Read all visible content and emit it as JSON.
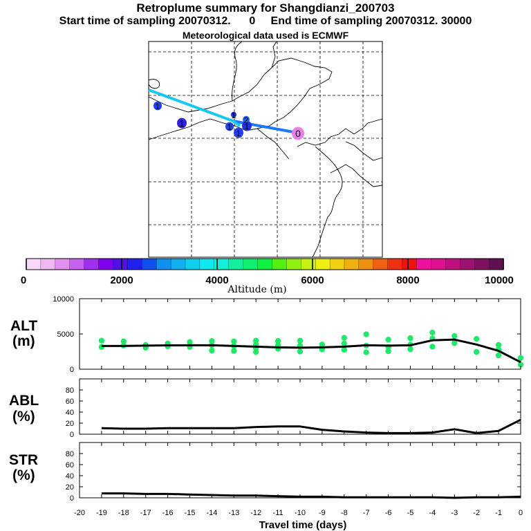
{
  "header": {
    "title": "Retroplume summary for Shangdianzi_200703",
    "subtitle": "Start time of sampling 20070312.      0     End time of sampling 20070312. 30000",
    "met_note": "Meteorological data used is ECMWF"
  },
  "colors": {
    "line_light": "#19c8f0",
    "line_dark": "#1e78ff",
    "scatter": "#22e86a",
    "median_line": "#000000"
  },
  "colorbar": {
    "label": "Altitude (m)",
    "ticks": [
      "0",
      "2000",
      "4000",
      "6000",
      "8000",
      "10000"
    ],
    "colors": [
      "#f8d8f8",
      "#f0b8f0",
      "#e090f0",
      "#c860f0",
      "#a030f0",
      "#8000f0",
      "#5010e8",
      "#2020f0",
      "#1050f0",
      "#1090f0",
      "#10b0f0",
      "#10d0f0",
      "#10e8f0",
      "#10f0d8",
      "#10f0a0",
      "#10f070",
      "#10f040",
      "#50f010",
      "#90f010",
      "#c8f010",
      "#f0f010",
      "#f0d010",
      "#f0b010",
      "#f09010",
      "#f06010",
      "#f03010",
      "#f01010",
      "#f010a0",
      "#e01090",
      "#c01080",
      "#a01070",
      "#801060",
      "#601050"
    ]
  },
  "map": {
    "markers": [
      {
        "label": "0",
        "color": "#e880e8"
      },
      {
        "label": "1",
        "color": "#2040f0"
      },
      {
        "label": "1",
        "color": "#2040f0"
      },
      {
        "label": "1",
        "color": "#2030e0"
      },
      {
        "label": "1",
        "color": "#3020e0"
      },
      {
        "label": "1",
        "color": "#2040f0"
      },
      {
        "label": "1",
        "color": "#2030e0"
      },
      {
        "label": "2",
        "color": "#1e60f0"
      }
    ]
  },
  "panels": {
    "alt": {
      "label_line1": "ALT",
      "label_line2": "(m)",
      "yticks": [
        "10000",
        "5000",
        "0"
      ]
    },
    "abl": {
      "label_line1": "ABL",
      "label_line2": "(%)",
      "yticks": [
        "80",
        "60",
        "40",
        "20",
        "0"
      ]
    },
    "str": {
      "label_line1": "STR",
      "label_line2": "(%)",
      "yticks": [
        "80",
        "60",
        "40",
        "20",
        "0"
      ]
    }
  },
  "xaxis": {
    "label": "Travel time (days)",
    "ticks": [
      "-20",
      "-19",
      "-18",
      "-17",
      "-16",
      "-15",
      "-14",
      "-13",
      "-12",
      "-11",
      "-10",
      "-9",
      "-8",
      "-7",
      "-6",
      "-5",
      "-4",
      "-3",
      "-2",
      "-1",
      "0"
    ]
  },
  "chart_data": [
    {
      "type": "line",
      "title": "ALT (m)",
      "xlabel": "Travel time (days)",
      "ylabel": "ALT (m)",
      "xlim": [
        -20,
        0
      ],
      "ylim": [
        0,
        10000
      ],
      "series": [
        {
          "name": "median altitude",
          "x": [
            -19,
            -18,
            -17,
            -16,
            -15,
            -14,
            -13,
            -12,
            -11,
            -10,
            -9,
            -8,
            -7,
            -6,
            -5,
            -4,
            -3,
            -2,
            -1,
            0
          ],
          "values": [
            3300,
            3300,
            3350,
            3380,
            3400,
            3400,
            3300,
            3200,
            3100,
            3050,
            3100,
            3200,
            3400,
            3350,
            3400,
            4100,
            4200,
            3500,
            2600,
            1000
          ]
        },
        {
          "name": "particle altitudes",
          "kind": "scatter",
          "points": [
            [
              -19,
              4050
            ],
            [
              -19,
              3150
            ],
            [
              -18,
              3950
            ],
            [
              -18,
              3350
            ],
            [
              -17,
              3450
            ],
            [
              -17,
              3050
            ],
            [
              -16,
              3650
            ],
            [
              -16,
              3250
            ],
            [
              -15,
              3850
            ],
            [
              -15,
              3150
            ],
            [
              -14,
              4000
            ],
            [
              -14,
              3400
            ],
            [
              -14,
              2650
            ],
            [
              -13,
              3950
            ],
            [
              -13,
              3300
            ],
            [
              -13,
              2600
            ],
            [
              -12,
              4050
            ],
            [
              -12,
              3500
            ],
            [
              -12,
              3000
            ],
            [
              -12,
              2450
            ],
            [
              -11,
              4000
            ],
            [
              -11,
              3450
            ],
            [
              -11,
              2900
            ],
            [
              -10,
              4050
            ],
            [
              -10,
              3350
            ],
            [
              -10,
              2500
            ],
            [
              -9,
              3500
            ],
            [
              -9,
              2800
            ],
            [
              -8,
              4450
            ],
            [
              -8,
              3650
            ],
            [
              -8,
              2750
            ],
            [
              -7,
              4950
            ],
            [
              -7,
              3350
            ],
            [
              -7,
              2400
            ],
            [
              -6,
              4200
            ],
            [
              -6,
              3150
            ],
            [
              -6,
              2550
            ],
            [
              -5,
              4400
            ],
            [
              -5,
              3500
            ],
            [
              -5,
              2850
            ],
            [
              -4,
              5200
            ],
            [
              -4,
              4350
            ],
            [
              -4,
              3200
            ],
            [
              -3,
              4700
            ],
            [
              -3,
              3700
            ],
            [
              -2,
              4300
            ],
            [
              -2,
              2450
            ],
            [
              -1,
              3450
            ],
            [
              -1,
              2800
            ],
            [
              -1,
              1950
            ],
            [
              0,
              1600
            ],
            [
              0,
              650
            ]
          ]
        }
      ]
    },
    {
      "type": "line",
      "title": "ABL (%)",
      "xlabel": "Travel time (days)",
      "ylabel": "ABL (%)",
      "xlim": [
        -20,
        0
      ],
      "ylim": [
        0,
        100
      ],
      "series": [
        {
          "name": "ABL fraction",
          "x": [
            -19,
            -18,
            -17,
            -16,
            -15,
            -14,
            -13,
            -12,
            -11,
            -10,
            -9,
            -8,
            -7,
            -6,
            -5,
            -4,
            -3,
            -2,
            -1,
            0
          ],
          "values": [
            11,
            10,
            10,
            11,
            11,
            11,
            11,
            13,
            14,
            14,
            8,
            5,
            3,
            2,
            2,
            3,
            9,
            2,
            6,
            26
          ]
        }
      ]
    },
    {
      "type": "line",
      "title": "STR (%)",
      "xlabel": "Travel time (days)",
      "ylabel": "STR (%)",
      "xlim": [
        -20,
        0
      ],
      "ylim": [
        0,
        100
      ],
      "series": [
        {
          "name": "stratosphere fraction",
          "x": [
            -19,
            -18,
            -17,
            -16,
            -15,
            -14,
            -13,
            -12,
            -11,
            -10,
            -9,
            -8,
            -7,
            -6,
            -5,
            -4,
            -3,
            -2,
            -1,
            0
          ],
          "values": [
            8,
            8,
            7,
            7,
            6,
            5,
            4,
            4,
            3,
            2,
            2,
            1,
            1,
            1,
            1,
            1,
            0,
            1,
            1,
            2
          ]
        }
      ]
    }
  ]
}
